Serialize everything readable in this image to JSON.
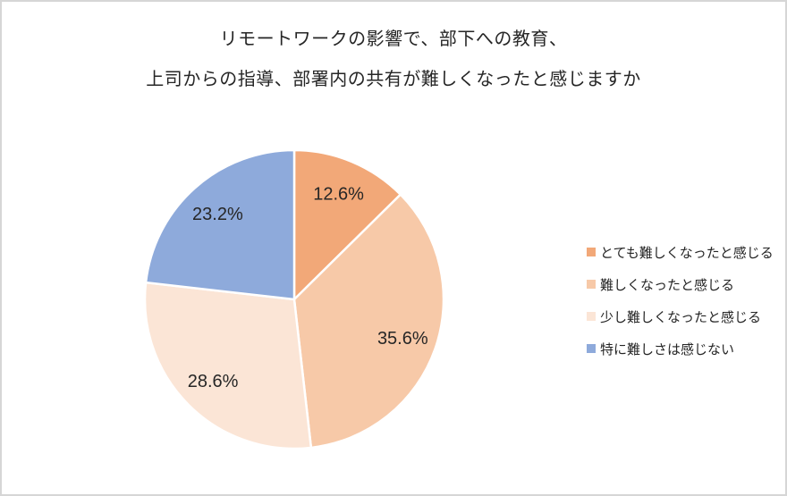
{
  "title": {
    "line1": "リモートワークの影響で、部下への教育、",
    "line2": "上司からの指導、部署内の共有が難しくなったと感じますか"
  },
  "chart_data": {
    "type": "pie",
    "title": "リモートワークの影響で、部下への教育、上司からの指導、部署内の共有が難しくなったと感じますか",
    "categories": [
      "とても難しくなったと感じる",
      "難しくなったと感じる",
      "少し難しくなったと感じる",
      "特に難しさは感じない"
    ],
    "values": [
      12.6,
      35.6,
      28.6,
      23.2
    ],
    "labels": [
      "12.6%",
      "35.6%",
      "28.6%",
      "23.2%"
    ],
    "unit": "%",
    "colors": [
      "#F2A878",
      "#F7C9A8",
      "#FBE5D6",
      "#8EAADB"
    ],
    "slice_border_color": "#FFFFFF",
    "start_angle_deg": 0,
    "direction": "clockwise",
    "label_radius_ratio": 0.77,
    "legend_position": "right",
    "text_color": "#262626",
    "background_color": "#FFFFFF",
    "frame_border_color": "#D6D6D6"
  }
}
